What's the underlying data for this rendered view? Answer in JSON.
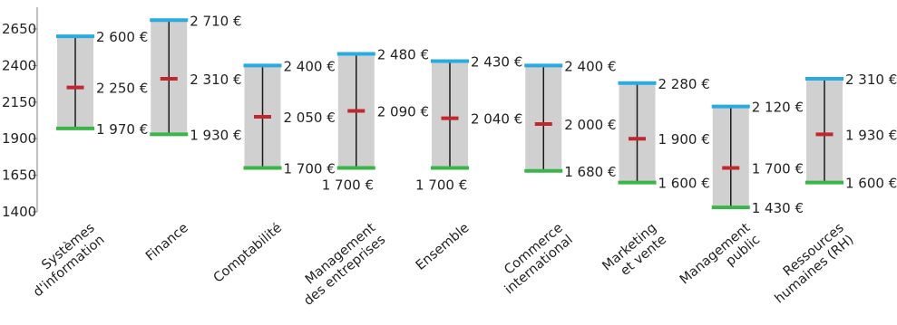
{
  "chart_data": {
    "type": "range",
    "title": "",
    "xlabel": "",
    "ylabel": "",
    "ylim": [
      1400,
      2700
    ],
    "yticks": [
      1400,
      1650,
      1900,
      2150,
      2400,
      2650
    ],
    "yticklabels": [
      "1400",
      "1650",
      "1900",
      "2150",
      "2400",
      "2650"
    ],
    "grid": false,
    "categories": [
      [
        "Systèmes",
        "d'information"
      ],
      [
        "Finance"
      ],
      [
        "Comptabilité"
      ],
      [
        "Management",
        "des entreprises"
      ],
      [
        "Ensemble"
      ],
      [
        "Commerce",
        "international"
      ],
      [
        "Marketing",
        "et vente"
      ],
      [
        "Management",
        "public"
      ],
      [
        "Ressources",
        "humaines (RH)"
      ]
    ],
    "series": [
      {
        "key": "high",
        "values": [
          2600,
          2710,
          2400,
          2480,
          2430,
          2400,
          2280,
          2120,
          2310
        ],
        "labels": [
          "2 600 €",
          "2 710 €",
          "2 400 €",
          "2 480 €",
          "2 430 €",
          "2 400 €",
          "2 280 €",
          "2 120 €",
          "2 310 €"
        ]
      },
      {
        "key": "median",
        "values": [
          2250,
          2310,
          2050,
          2090,
          2040,
          2000,
          1900,
          1700,
          1930
        ],
        "labels": [
          "2 250 €",
          "2 310 €",
          "2 050 €",
          "2 090 €",
          "2 040 €",
          "2 000 €",
          "1 900 €",
          "1 700 €",
          "1 930 €"
        ]
      },
      {
        "key": "low",
        "values": [
          1970,
          1930,
          1700,
          1700,
          1700,
          1680,
          1600,
          1430,
          1600
        ],
        "labels": [
          "1 970 €",
          "1 930 €",
          "1 700 €",
          "1 700 €",
          "1 700 €",
          "1 680 €",
          "1 600 €",
          "1 430 €",
          "1 600 €"
        ]
      }
    ],
    "colors": {
      "range_box": "#d0d0d0",
      "high_marker": "#29abe2",
      "median_marker": "#c1272d",
      "low_marker": "#39b54a",
      "whisker": "#1a1a1a",
      "axis": "#808080"
    }
  }
}
